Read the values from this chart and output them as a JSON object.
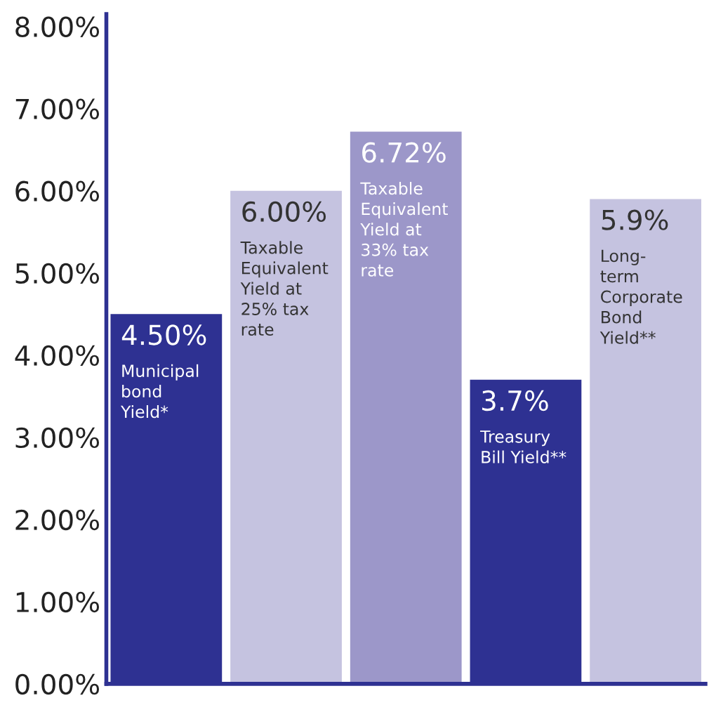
{
  "chart_data": {
    "type": "bar",
    "categories": [
      null,
      null,
      null,
      null,
      null
    ],
    "values": [
      4.5,
      6.0,
      6.72,
      3.7,
      5.9
    ],
    "value_labels": [
      "4.50%",
      "6.00%",
      "6.72%",
      "3.7%",
      "5.9%"
    ],
    "colors": [
      "#2e3192",
      "#c5c3e0",
      "#9c97c9",
      "#2e3192",
      "#c5c3e0"
    ],
    "annotations": [
      "Municipal\nbond\nYield*",
      "Taxable\nEquivalent\nYield at\n25% tax\nrate",
      "Taxable\nEquivalent\nYield at\n33% tax\nrate",
      "Treasury\nBill Yield**",
      "Long-\nterm\nCorporate\nBond\nYield**"
    ],
    "ylim": [
      0,
      8.15
    ],
    "yticks": [
      {
        "value": 0,
        "label": "0.00%"
      },
      {
        "value": 1,
        "label": "1.00%"
      },
      {
        "value": 2,
        "label": "2.00%"
      },
      {
        "value": 3,
        "label": "3.00%"
      },
      {
        "value": 4,
        "label": "4.00%"
      },
      {
        "value": 5,
        "label": "5.00%"
      },
      {
        "value": 6,
        "label": "6.00%"
      },
      {
        "value": 7,
        "label": "7.00%"
      },
      {
        "value": 8,
        "label": "8.00%"
      }
    ],
    "grid": false
  }
}
